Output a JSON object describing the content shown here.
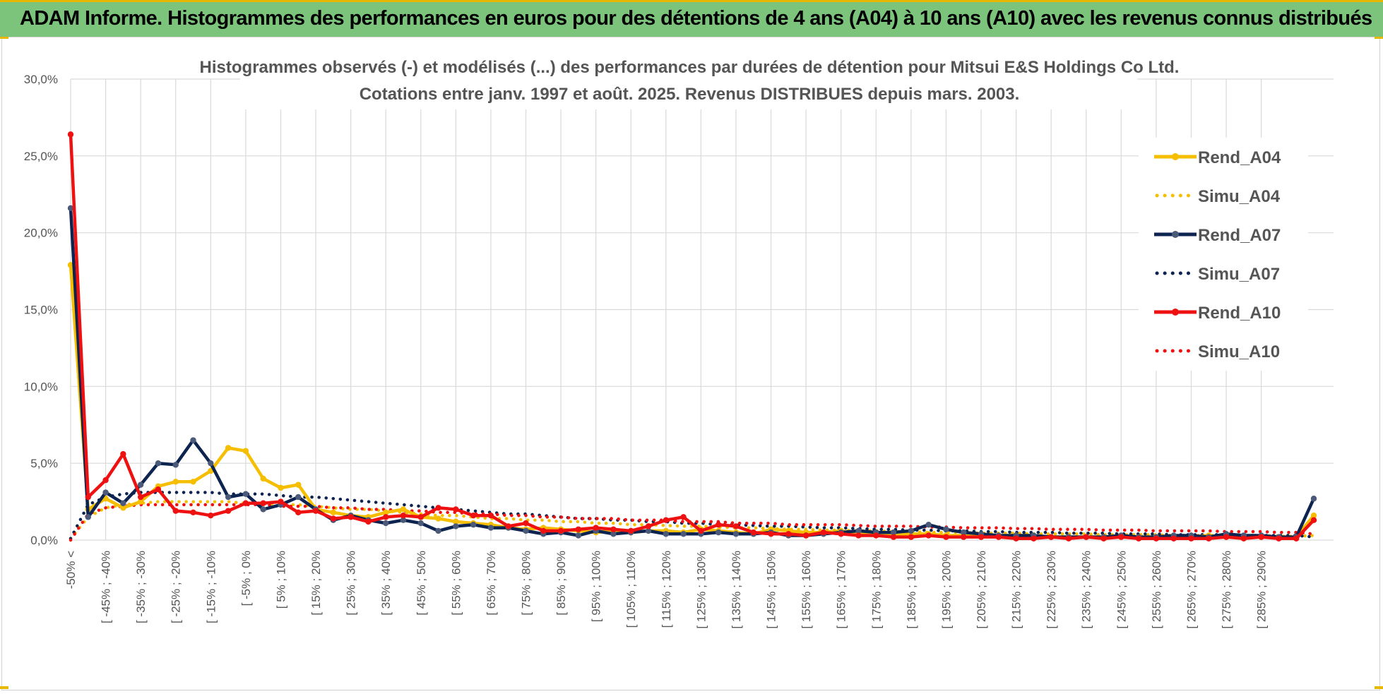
{
  "banner": {
    "title": "ADAM Informe. Histogrammes des performances en euros pour des détentions de 4 ans (A04) à 10 ans (A10) avec les revenus connus distribués"
  },
  "chart_data": {
    "type": "line",
    "title": "Histogrammes observés (-) et modélisés (...) des performances par durées de détention pour Mitsui E&S Holdings Co Ltd.",
    "subtitle": "Cotations entre janv. 1997 et août. 2025. Revenus DISTRIBUES depuis mars. 2003.",
    "xlabel": "",
    "ylabel": "",
    "ylim": [
      0,
      30
    ],
    "yticks": [
      "0,0%",
      "5,0%",
      "10,0%",
      "15,0%",
      "20,0%",
      "25,0%",
      "30,0%"
    ],
    "grid": true,
    "legend_position": "right",
    "x_tick_labels": [
      "-50% <",
      "[ -45% ; -40%",
      "[ -35% ; -30%",
      "[ -25% ; -20%",
      "[ -15% ; -10%",
      "[ -5% ; 0%",
      "[ 5% ; 10%",
      "[ 15% ; 20%",
      "[ 25% ; 30%",
      "[ 35% ; 40%",
      "[ 45% ; 50%",
      "[ 55% ; 60%",
      "[ 65% ; 70%",
      "[ 75% ; 80%",
      "[ 85% ; 90%",
      "[ 95% ; 100%",
      "[ 105% ; 110%",
      "[ 115% ; 120%",
      "[ 125% ; 130%",
      "[ 135% ; 140%",
      "[ 145% ; 150%",
      "[ 155% ; 160%",
      "[ 165% ; 170%",
      "[ 175% ; 180%",
      "[ 185% ; 190%",
      "[ 195% ; 200%",
      "[ 205% ; 210%",
      "[ 215% ; 220%",
      "[ 225% ; 230%",
      "[ 235% ; 240%",
      "[ 245% ; 250%",
      "[ 255% ; 260%",
      "[ 265% ; 270%",
      "[ 275% ; 280%",
      "[ 285% ; 290%"
    ],
    "series": [
      {
        "name": "Rend_A04",
        "color": "#f5be00",
        "style": "solid",
        "values": [
          17.9,
          2.0,
          2.7,
          2.1,
          2.5,
          3.5,
          3.8,
          3.8,
          4.5,
          6.0,
          5.8,
          4.0,
          3.4,
          3.6,
          2.0,
          1.8,
          1.6,
          1.5,
          1.8,
          2.0,
          1.5,
          1.4,
          1.2,
          1.1,
          1.0,
          0.8,
          0.7,
          0.8,
          0.7,
          0.6,
          0.5,
          0.6,
          0.5,
          0.6,
          0.6,
          0.5,
          0.7,
          0.6,
          0.5,
          0.4,
          0.7,
          0.6,
          0.5,
          0.5,
          0.6,
          0.4,
          0.4,
          0.3,
          0.4,
          0.4,
          0.3,
          0.3,
          0.3,
          0.3,
          0.3,
          0.3,
          0.2,
          0.2,
          0.2,
          0.2,
          0.2,
          0.2,
          0.2,
          0.2,
          0.2,
          0.3,
          0.2,
          0.2,
          0.2,
          0.2,
          0.2,
          1.6
        ]
      },
      {
        "name": "Simu_A04",
        "color": "#f5be00",
        "style": "dotted",
        "values": [
          0.1,
          1.5,
          2.1,
          2.3,
          2.4,
          2.5,
          2.5,
          2.5,
          2.5,
          2.5,
          2.4,
          2.4,
          2.3,
          2.3,
          2.2,
          2.1,
          2.0,
          2.0,
          1.9,
          1.8,
          1.7,
          1.6,
          1.6,
          1.5,
          1.4,
          1.4,
          1.3,
          1.3,
          1.2,
          1.2,
          1.1,
          1.1,
          1.0,
          1.0,
          0.95,
          0.9,
          0.9,
          0.85,
          0.8,
          0.8,
          0.75,
          0.7,
          0.7,
          0.65,
          0.65,
          0.6,
          0.6,
          0.55,
          0.55,
          0.5,
          0.5,
          0.5,
          0.45,
          0.45,
          0.45,
          0.4,
          0.4,
          0.4,
          0.4,
          0.35,
          0.35,
          0.35,
          0.35,
          0.3,
          0.3,
          0.3,
          0.3,
          0.3,
          0.3,
          0.25,
          0.25,
          0.3
        ]
      },
      {
        "name": "Rend_A07",
        "color": "#0d2350",
        "style": "solid",
        "values": [
          21.6,
          1.5,
          3.1,
          2.4,
          3.6,
          5.0,
          4.9,
          6.5,
          5.0,
          2.8,
          3.0,
          2.0,
          2.3,
          2.8,
          2.0,
          1.3,
          1.6,
          1.3,
          1.1,
          1.3,
          1.1,
          0.6,
          0.9,
          1.0,
          0.8,
          0.8,
          0.6,
          0.4,
          0.5,
          0.3,
          0.6,
          0.4,
          0.5,
          0.6,
          0.4,
          0.4,
          0.4,
          0.5,
          0.4,
          0.4,
          0.5,
          0.3,
          0.3,
          0.4,
          0.5,
          0.6,
          0.5,
          0.5,
          0.6,
          1.0,
          0.7,
          0.5,
          0.4,
          0.3,
          0.3,
          0.3,
          0.2,
          0.2,
          0.2,
          0.2,
          0.3,
          0.2,
          0.2,
          0.3,
          0.3,
          0.2,
          0.4,
          0.3,
          0.3,
          0.2,
          0.2,
          2.7
        ]
      },
      {
        "name": "Simu_A07",
        "color": "#0d2350",
        "style": "dotted",
        "values": [
          0.1,
          2.3,
          2.8,
          3.0,
          3.1,
          3.1,
          3.1,
          3.1,
          3.1,
          3.0,
          3.0,
          3.0,
          2.9,
          2.8,
          2.8,
          2.7,
          2.6,
          2.5,
          2.4,
          2.3,
          2.2,
          2.1,
          2.0,
          1.9,
          1.8,
          1.7,
          1.7,
          1.6,
          1.5,
          1.4,
          1.4,
          1.3,
          1.3,
          1.2,
          1.2,
          1.1,
          1.1,
          1.0,
          1.0,
          0.95,
          0.9,
          0.9,
          0.85,
          0.8,
          0.8,
          0.75,
          0.7,
          0.7,
          0.65,
          0.65,
          0.6,
          0.6,
          0.55,
          0.55,
          0.5,
          0.5,
          0.5,
          0.45,
          0.45,
          0.45,
          0.4,
          0.4,
          0.4,
          0.35,
          0.35,
          0.35,
          0.35,
          0.3,
          0.3,
          0.3,
          0.3,
          0.2
        ]
      },
      {
        "name": "Rend_A10",
        "color": "#ee1111",
        "style": "solid",
        "values": [
          26.4,
          2.8,
          3.9,
          5.6,
          2.8,
          3.3,
          1.9,
          1.8,
          1.6,
          1.9,
          2.4,
          2.4,
          2.5,
          1.8,
          1.9,
          1.4,
          1.5,
          1.2,
          1.5,
          1.6,
          1.5,
          2.1,
          2.0,
          1.6,
          1.6,
          0.9,
          1.1,
          0.6,
          0.6,
          0.7,
          0.8,
          0.7,
          0.6,
          0.9,
          1.3,
          1.5,
          0.6,
          1.0,
          0.9,
          0.5,
          0.4,
          0.4,
          0.3,
          0.5,
          0.4,
          0.3,
          0.3,
          0.2,
          0.2,
          0.3,
          0.2,
          0.2,
          0.2,
          0.2,
          0.1,
          0.1,
          0.2,
          0.1,
          0.2,
          0.1,
          0.2,
          0.1,
          0.1,
          0.1,
          0.1,
          0.1,
          0.2,
          0.1,
          0.2,
          0.1,
          0.1,
          1.3
        ]
      },
      {
        "name": "Simu_A10",
        "color": "#ee1111",
        "style": "dotted",
        "values": [
          0.0,
          1.7,
          2.1,
          2.2,
          2.3,
          2.3,
          2.3,
          2.3,
          2.3,
          2.3,
          2.3,
          2.3,
          2.2,
          2.2,
          2.2,
          2.1,
          2.1,
          2.0,
          2.0,
          1.9,
          1.9,
          1.8,
          1.8,
          1.7,
          1.7,
          1.6,
          1.6,
          1.5,
          1.5,
          1.4,
          1.4,
          1.4,
          1.3,
          1.3,
          1.3,
          1.2,
          1.2,
          1.2,
          1.1,
          1.1,
          1.1,
          1.0,
          1.0,
          1.0,
          1.0,
          0.95,
          0.9,
          0.9,
          0.9,
          0.85,
          0.85,
          0.8,
          0.8,
          0.8,
          0.75,
          0.75,
          0.7,
          0.7,
          0.7,
          0.65,
          0.65,
          0.65,
          0.6,
          0.6,
          0.6,
          0.6,
          0.55,
          0.55,
          0.55,
          0.5,
          0.5,
          0.4
        ]
      }
    ]
  }
}
